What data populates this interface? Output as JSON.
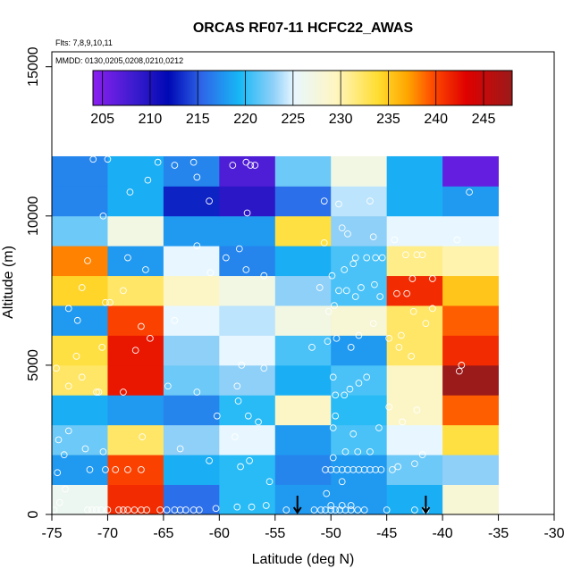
{
  "chart_data": {
    "type": "heatmap",
    "title": "ORCAS RF07-11 HCFC22_AWAS",
    "notes": [
      "Flts: 7,8,9,10,11",
      "MMDD: 0130,0205,0208,0210,0212"
    ],
    "xlabel": "Latitude (deg N)",
    "ylabel": "Altitude (m)",
    "xlim": [
      -75,
      -30
    ],
    "ylim": [
      0,
      15500
    ],
    "xticks": [
      "-75",
      "-70",
      "-65",
      "-60",
      "-55",
      "-50",
      "-45",
      "-40",
      "-35",
      "-30"
    ],
    "xtick_values": [
      -75,
      -70,
      -65,
      -60,
      -55,
      -50,
      -45,
      -40,
      -35,
      -30
    ],
    "yticks": [
      "0",
      "5000",
      "10000",
      "15000"
    ],
    "ytick_values": [
      0,
      5000,
      10000,
      15000
    ],
    "colorbar": {
      "range": [
        204,
        248
      ],
      "tick_labels": [
        "205",
        "210",
        "215",
        "220",
        "225",
        "230",
        "235",
        "240",
        "245"
      ],
      "tick_values": [
        205,
        210,
        215,
        220,
        225,
        230,
        235,
        240,
        245
      ]
    },
    "lat_edges": [
      -75,
      -70,
      -65,
      -60,
      -55,
      -50,
      -45,
      -40,
      -35
    ],
    "alt_edges": [
      0,
      1000,
      2000,
      3000,
      4000,
      5000,
      6000,
      7000,
      8000,
      9000,
      10000,
      11000,
      12000
    ],
    "values": [
      [
        226,
        241,
        216,
        220,
        218,
        218,
        219,
        228
      ],
      [
        218,
        240,
        219,
        220,
        217,
        218,
        222,
        223
      ],
      [
        222,
        232,
        223,
        225,
        218,
        221,
        225,
        233
      ],
      [
        219,
        218,
        217,
        220,
        229,
        220,
        229,
        239
      ],
      [
        232,
        242,
        222,
        223,
        219,
        221,
        229,
        248
      ],
      [
        233,
        242,
        223,
        225,
        221,
        218,
        232,
        241
      ],
      [
        218,
        240,
        225,
        224,
        227,
        228,
        232,
        239
      ],
      [
        234,
        232,
        229,
        227,
        223,
        221,
        241,
        235
      ],
      [
        238,
        218,
        225,
        217,
        219,
        221,
        231,
        230
      ],
      [
        222,
        227,
        218,
        218,
        233,
        223,
        225,
        225
      ],
      [
        217,
        219,
        213,
        209,
        216,
        224,
        219,
        218
      ],
      [
        217,
        219,
        217,
        207,
        222,
        227,
        219,
        206
      ]
    ],
    "flight_points": [
      [
        -74.8,
        150
      ],
      [
        -74.3,
        400
      ],
      [
        -73.8,
        850
      ],
      [
        -74.5,
        1400
      ],
      [
        -73.9,
        2000
      ],
      [
        -74.4,
        2500
      ],
      [
        -73.5,
        2800
      ],
      [
        -71.8,
        150
      ],
      [
        -71.4,
        150
      ],
      [
        -71.0,
        150
      ],
      [
        -70.6,
        150
      ],
      [
        -70.0,
        150
      ],
      [
        -69.0,
        150
      ],
      [
        -68.6,
        150
      ],
      [
        -68.2,
        150
      ],
      [
        -67.6,
        150
      ],
      [
        -67.0,
        150
      ],
      [
        -66.5,
        150
      ],
      [
        -65.3,
        150
      ],
      [
        -64.7,
        150
      ],
      [
        -64.0,
        150
      ],
      [
        -63.5,
        150
      ],
      [
        -63.0,
        150
      ],
      [
        -62.3,
        150
      ],
      [
        -61.8,
        150
      ],
      [
        -71.6,
        1500
      ],
      [
        -70.2,
        1500
      ],
      [
        -69.3,
        1500
      ],
      [
        -68.2,
        1500
      ],
      [
        -67.0,
        1500
      ],
      [
        -72.0,
        2200
      ],
      [
        -70.4,
        2100
      ],
      [
        -66.9,
        2600
      ],
      [
        -63.5,
        2200
      ],
      [
        -73.5,
        4300
      ],
      [
        -72.3,
        4600
      ],
      [
        -71.0,
        4100
      ],
      [
        -70.8,
        4100
      ],
      [
        -68.6,
        4100
      ],
      [
        -64.6,
        4300
      ],
      [
        -62.0,
        4100
      ],
      [
        -74.6,
        4900
      ],
      [
        -72.8,
        5300
      ],
      [
        -70.5,
        5600
      ],
      [
        -67.5,
        5500
      ],
      [
        -66.2,
        5900
      ],
      [
        -64.0,
        6500
      ],
      [
        -73.5,
        6900
      ],
      [
        -72.7,
        6500
      ],
      [
        -72.3,
        7600
      ],
      [
        -70.2,
        7100
      ],
      [
        -69.8,
        7100
      ],
      [
        -68.6,
        7500
      ],
      [
        -67.0,
        6300
      ],
      [
        -71.8,
        8500
      ],
      [
        -68.2,
        8600
      ],
      [
        -66.6,
        8200
      ],
      [
        -62.0,
        9000
      ],
      [
        -60.8,
        8100
      ],
      [
        -59.4,
        8600
      ],
      [
        -57.6,
        8200
      ],
      [
        -56.0,
        8000
      ],
      [
        -70.4,
        10000
      ],
      [
        -68.0,
        10800
      ],
      [
        -66.4,
        11200
      ],
      [
        -64.0,
        11700
      ],
      [
        -62.3,
        11800
      ],
      [
        -62.0,
        11300
      ],
      [
        -60.9,
        10500
      ],
      [
        -58.8,
        11700
      ],
      [
        -57.6,
        11800
      ],
      [
        -57.2,
        11700
      ],
      [
        -56.8,
        11700
      ],
      [
        -57.5,
        10100
      ],
      [
        -58.2,
        8900
      ],
      [
        -71.3,
        11900
      ],
      [
        -70.0,
        11900
      ],
      [
        -65.5,
        11800
      ],
      [
        -58.0,
        5000
      ],
      [
        -58.4,
        4300
      ],
      [
        -57.4,
        3300
      ],
      [
        -58.3,
        3800
      ],
      [
        -58.6,
        2600
      ],
      [
        -60.9,
        1800
      ],
      [
        -57.3,
        1800
      ],
      [
        -56.0,
        4900
      ],
      [
        -56.5,
        3100
      ],
      [
        -60.2,
        3300
      ],
      [
        -58.1,
        1600
      ],
      [
        -55.5,
        1100
      ],
      [
        -55.8,
        300
      ],
      [
        -54.0,
        150
      ],
      [
        -58.4,
        250
      ],
      [
        -57.1,
        250
      ],
      [
        -60.3,
        200
      ],
      [
        -51.5,
        150
      ],
      [
        -50.9,
        150
      ],
      [
        -50.5,
        150
      ],
      [
        -50.0,
        150
      ],
      [
        -49.6,
        150
      ],
      [
        -49.2,
        150
      ],
      [
        -48.7,
        150
      ],
      [
        -48.2,
        150
      ],
      [
        -47.6,
        150
      ],
      [
        -47.0,
        150
      ],
      [
        -50.0,
        300
      ],
      [
        -49.0,
        300
      ],
      [
        -48.2,
        300
      ],
      [
        -45.0,
        150
      ],
      [
        -42.5,
        150
      ],
      [
        -41.5,
        150
      ],
      [
        -50.4,
        700
      ],
      [
        -49.0,
        1100
      ],
      [
        -50.5,
        1500
      ],
      [
        -50.0,
        1500
      ],
      [
        -49.5,
        1500
      ],
      [
        -49.0,
        1500
      ],
      [
        -48.5,
        1500
      ],
      [
        -48.0,
        1500
      ],
      [
        -47.5,
        1500
      ],
      [
        -47.0,
        1500
      ],
      [
        -46.5,
        1500
      ],
      [
        -46.0,
        1500
      ],
      [
        -45.5,
        1500
      ],
      [
        -49.8,
        1900
      ],
      [
        -48.7,
        2100
      ],
      [
        -47.6,
        2100
      ],
      [
        -46.5,
        2100
      ],
      [
        -44.5,
        1500
      ],
      [
        -44.0,
        1600
      ],
      [
        -42.5,
        1700
      ],
      [
        -41.8,
        2000
      ],
      [
        -49.8,
        2900
      ],
      [
        -49.6,
        3300
      ],
      [
        -48.0,
        2700
      ],
      [
        -45.7,
        2900
      ],
      [
        -43.6,
        3100
      ],
      [
        -42.3,
        3500
      ],
      [
        -44.8,
        3600
      ],
      [
        -49.6,
        4000
      ],
      [
        -48.8,
        4000
      ],
      [
        -48.3,
        4200
      ],
      [
        -47.5,
        4400
      ],
      [
        -46.8,
        4600
      ],
      [
        -49.8,
        4600
      ],
      [
        -51.7,
        5600
      ],
      [
        -50.3,
        5800
      ],
      [
        -49.5,
        5900
      ],
      [
        -48.2,
        5600
      ],
      [
        -47.5,
        6000
      ],
      [
        -46.2,
        6400
      ],
      [
        -44.8,
        5900
      ],
      [
        -43.7,
        6000
      ],
      [
        -43.9,
        5600
      ],
      [
        -42.8,
        5300
      ],
      [
        -50.2,
        6800
      ],
      [
        -49.7,
        7000
      ],
      [
        -47.8,
        7300
      ],
      [
        -45.6,
        7300
      ],
      [
        -43.2,
        7400
      ],
      [
        -41.5,
        6400
      ],
      [
        -42.6,
        6800
      ],
      [
        -51.0,
        7600
      ],
      [
        -49.3,
        7500
      ],
      [
        -48.6,
        7500
      ],
      [
        -47.3,
        7600
      ],
      [
        -46.1,
        7700
      ],
      [
        -44.1,
        7400
      ],
      [
        -40.9,
        6900
      ],
      [
        -49.9,
        8000
      ],
      [
        -48.8,
        8200
      ],
      [
        -48.0,
        8400
      ],
      [
        -47.8,
        8600
      ],
      [
        -46.8,
        8600
      ],
      [
        -46.0,
        8600
      ],
      [
        -45.4,
        8600
      ],
      [
        -43.3,
        8700
      ],
      [
        -42.3,
        8700
      ],
      [
        -41.8,
        8700
      ],
      [
        -50.6,
        9100
      ],
      [
        -49.0,
        9600
      ],
      [
        -48.5,
        9400
      ],
      [
        -46.2,
        9300
      ],
      [
        -44.3,
        9200
      ],
      [
        -38.7,
        9200
      ],
      [
        -50.6,
        10500
      ],
      [
        -49.3,
        10400
      ],
      [
        -46.5,
        10500
      ],
      [
        -37.6,
        10800
      ],
      [
        -42.7,
        7900
      ],
      [
        -40.9,
        7900
      ],
      [
        -38.5,
        4800
      ],
      [
        -38.3,
        5000
      ]
    ],
    "markers": [
      -53,
      -41.5
    ]
  }
}
